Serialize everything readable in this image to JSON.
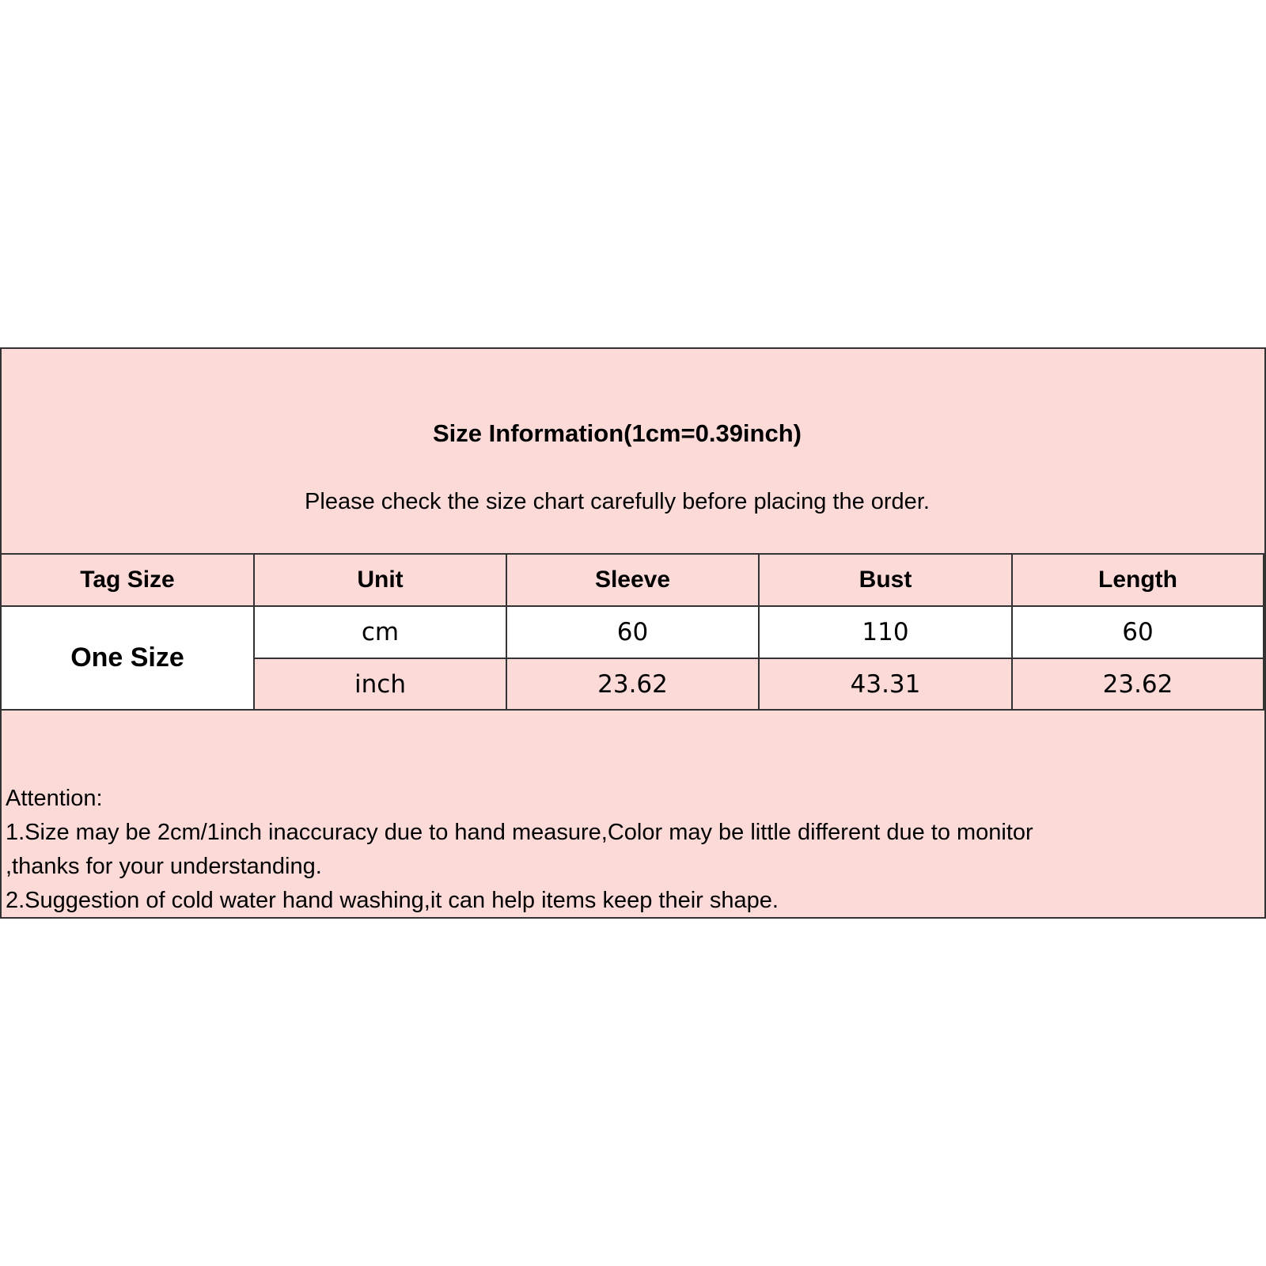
{
  "title": "Size Information(1cm=0.39inch)",
  "subtitle": "Please check the size chart carefully before placing the order.",
  "colors": {
    "pink": "#fcdad8",
    "border": "#333333"
  },
  "table": {
    "headers": [
      "Tag Size",
      "Unit",
      "Sleeve",
      "Bust",
      "Length"
    ],
    "tag_size": "One Size",
    "rows": [
      {
        "unit": "cm",
        "sleeve": "60",
        "bust": "110",
        "length": "60"
      },
      {
        "unit": "inch",
        "sleeve": "23.62",
        "bust": "43.31",
        "length": "23.62"
      }
    ]
  },
  "attention": {
    "heading": "Attention:",
    "lines": [
      "1.Size may be 2cm/1inch inaccuracy due to hand measure,Color may be little different due to monitor",
      ",thanks for your understanding.",
      "2.Suggestion of cold water hand washing,it can help items keep their shape."
    ]
  }
}
